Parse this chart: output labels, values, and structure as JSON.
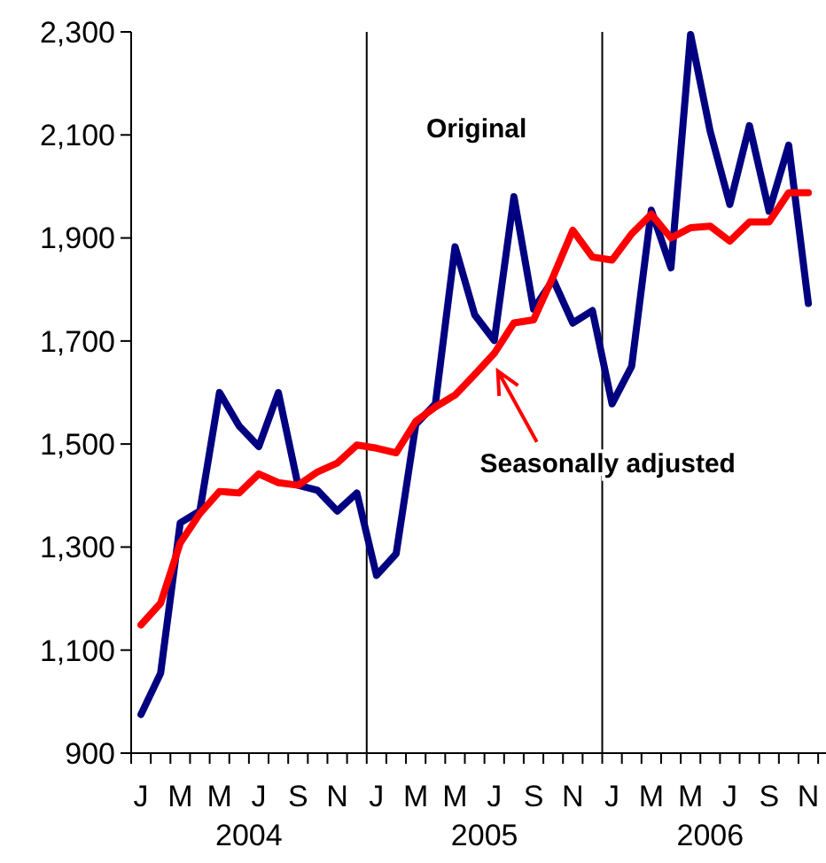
{
  "chart_data": {
    "type": "line",
    "categories": [
      "J",
      null,
      "M",
      null,
      "M",
      null,
      "J",
      null,
      "S",
      null,
      "N",
      null,
      "J",
      null,
      "M",
      null,
      "M",
      null,
      "J",
      null,
      "S",
      null,
      "N",
      null,
      "J",
      null,
      "M",
      null,
      "M",
      null,
      "J",
      null,
      "S",
      null,
      "N"
    ],
    "series": [
      {
        "name": "Original",
        "color": "#000080",
        "values": [
          975,
          1055,
          1347,
          1370,
          1600,
          1535,
          1495,
          1600,
          1420,
          1410,
          1370,
          1405,
          1245,
          1287,
          1538,
          1578,
          1883,
          1751,
          1701,
          1980,
          1762,
          1819,
          1735,
          1759,
          1578,
          1651,
          1954,
          1842,
          2295,
          2107,
          1965,
          2118,
          1952,
          2080,
          1773
        ]
      },
      {
        "name": "Seasonally adjusted",
        "color": "#ff0000",
        "values": [
          1149,
          1191,
          1308,
          1365,
          1408,
          1405,
          1442,
          1425,
          1420,
          1446,
          1463,
          1498,
          1492,
          1483,
          1544,
          1572,
          1595,
          1635,
          1676,
          1735,
          1741,
          1825,
          1915,
          1863,
          1857,
          1908,
          1946,
          1900,
          1920,
          1923,
          1894,
          1931,
          1931,
          1988,
          1988
        ]
      }
    ],
    "ylim": [
      900,
      2300
    ],
    "yticks": [
      900,
      {
        "value": 1100,
        "label": "1,100"
      },
      {
        "value": 1300,
        "label": "1,300"
      },
      {
        "value": 1500,
        "label": "1,500"
      },
      {
        "value": 1700,
        "label": "1,700"
      },
      {
        "value": 1900,
        "label": "1,900"
      },
      {
        "value": 2100,
        "label": "2,100"
      },
      {
        "value": 2300,
        "label": "2,300"
      }
    ],
    "annotations": [
      "2004",
      "2005",
      "2006"
    ],
    "marker": "none",
    "line_style": "solid",
    "grid": false
  }
}
